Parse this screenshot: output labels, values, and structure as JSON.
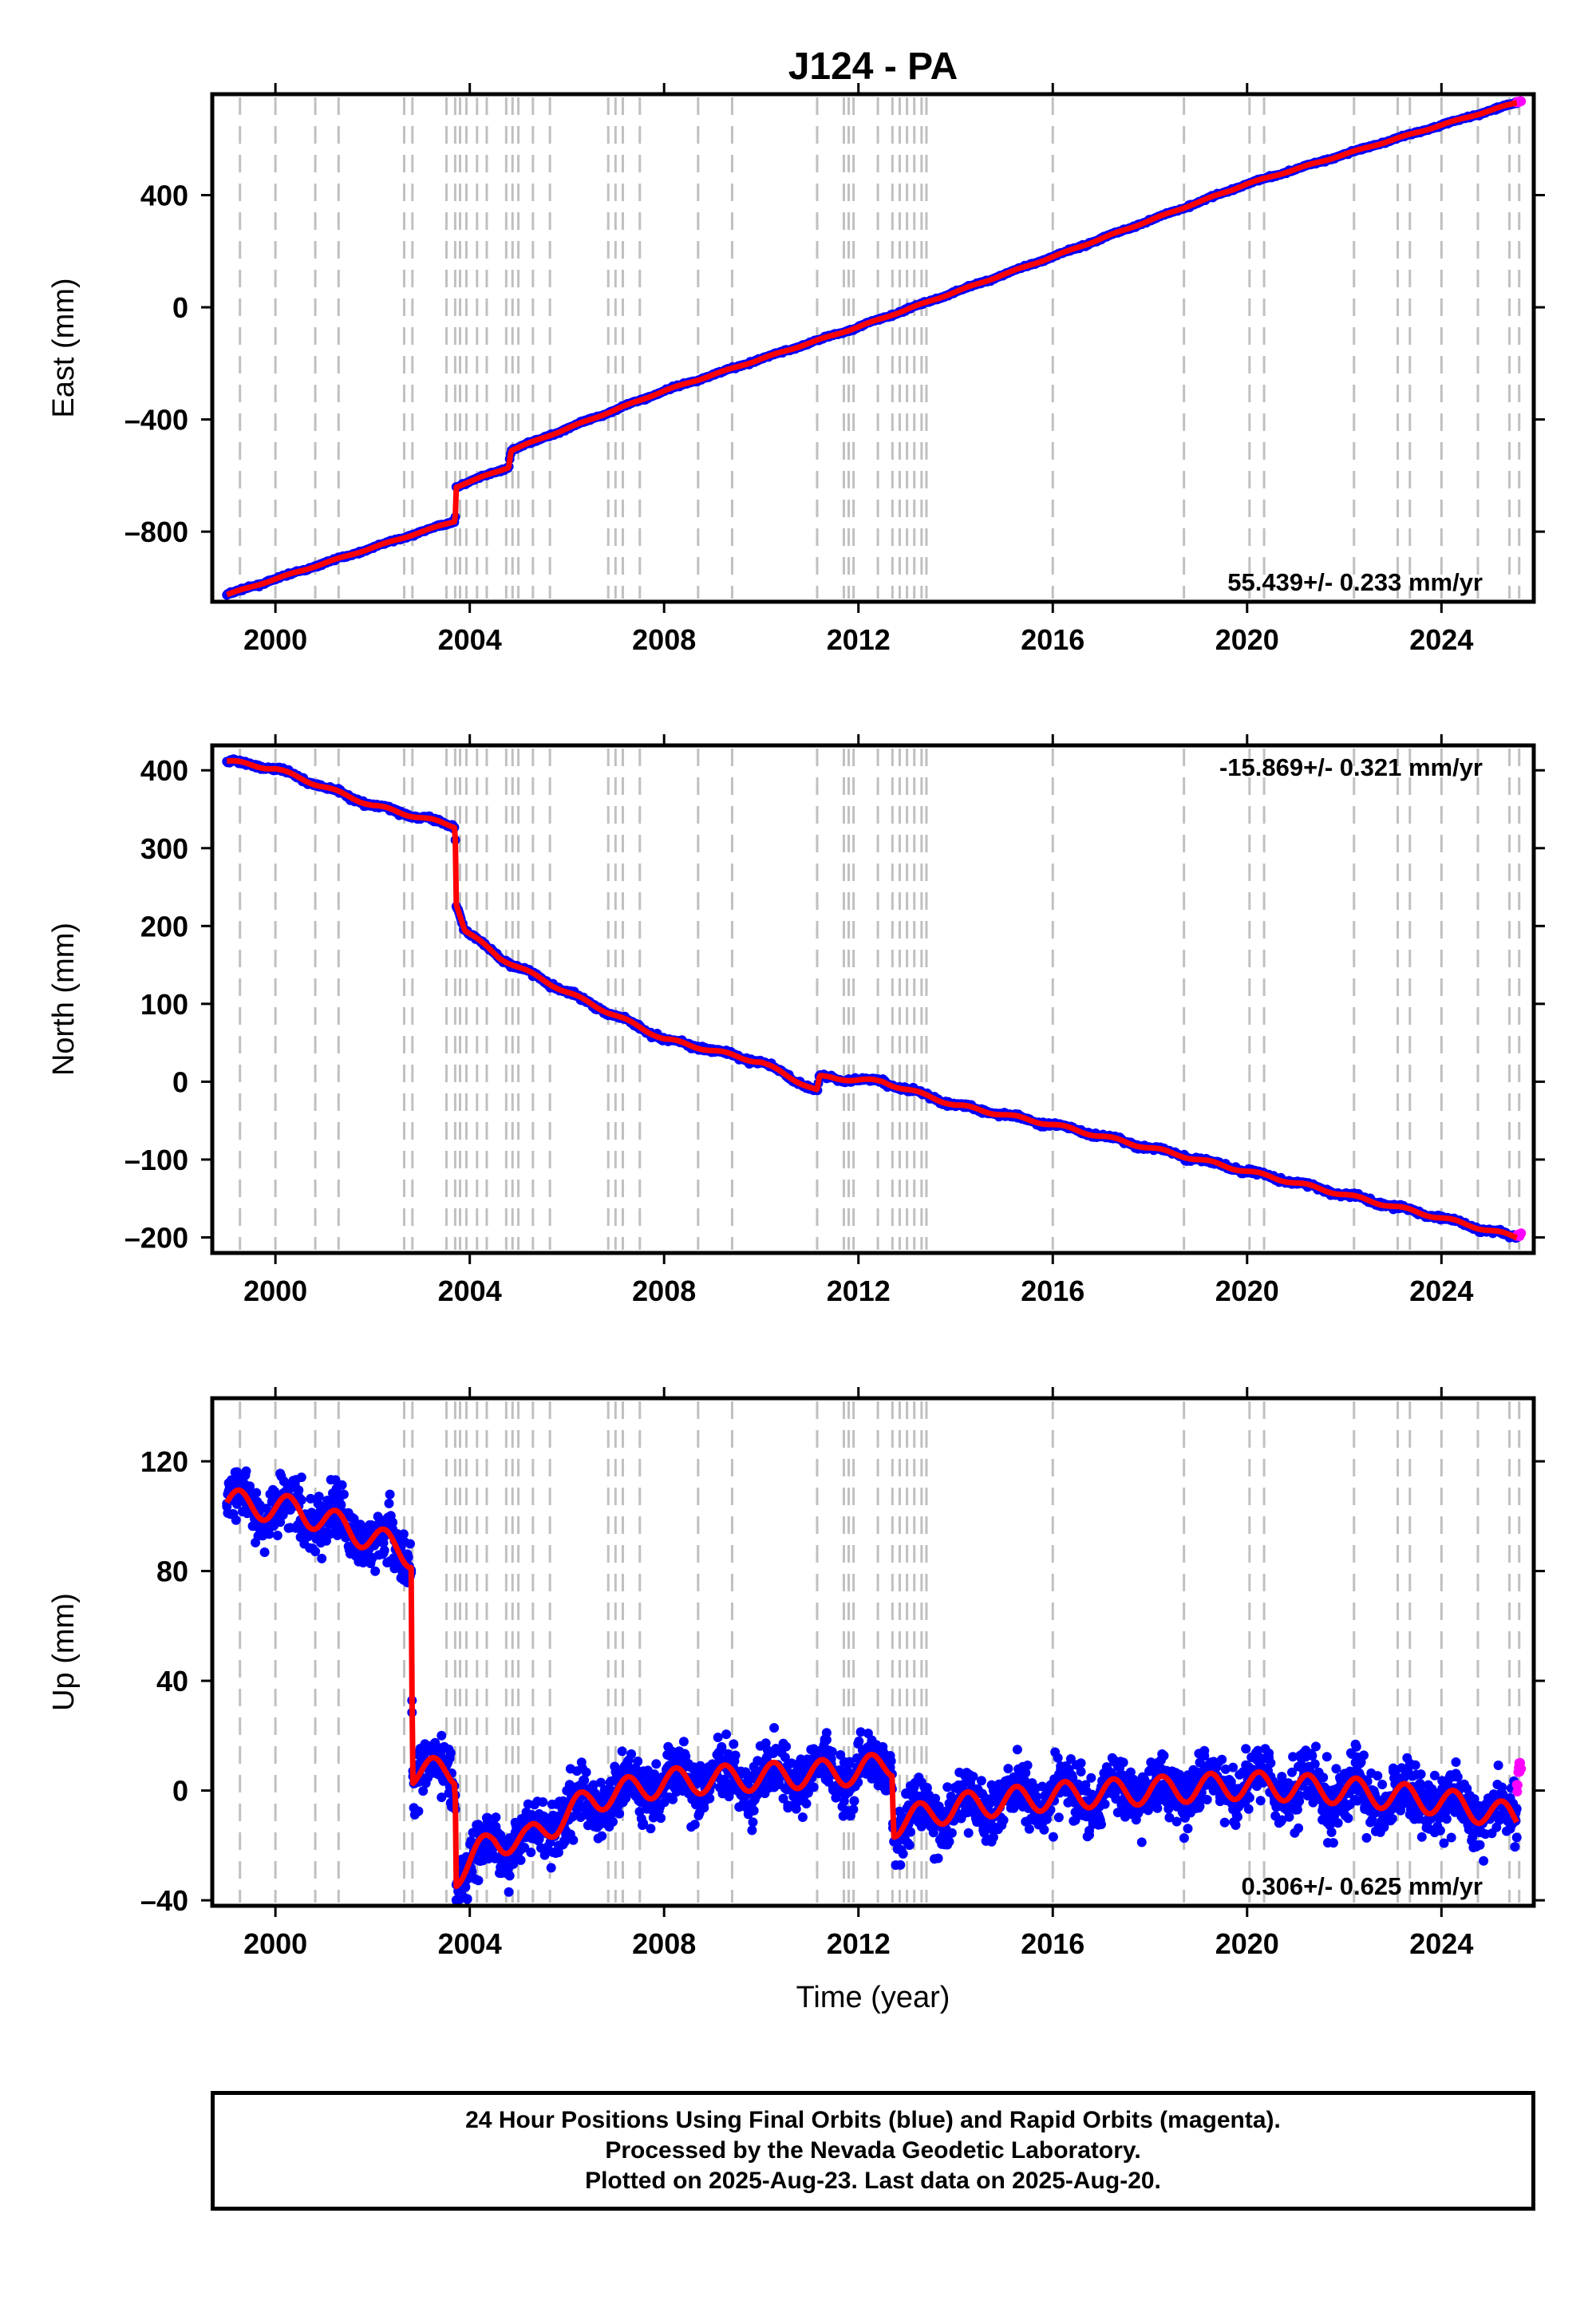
{
  "title": "J124 - PA",
  "xlabel": "Time (year)",
  "footer": {
    "line1": "24 Hour Positions Using Final Orbits (blue) and Rapid Orbits (magenta).",
    "line2": "Processed by the Nevada Geodetic Laboratory.",
    "line3": "Plotted on 2025-Aug-23. Last data on 2025-Aug-20."
  },
  "colors": {
    "final": "#0000ff",
    "rapid": "#ff00ff",
    "model": "#ff0000",
    "steps": "#c0c0c0",
    "axes": "#000000"
  },
  "chart_data": [
    {
      "type": "scatter",
      "component": "east",
      "ylabel": "East (mm)",
      "xlim": [
        1998.7,
        2025.9
      ],
      "ylim": [
        -1050,
        760
      ],
      "xticks": [
        2000,
        2004,
        2008,
        2012,
        2016,
        2020,
        2024
      ],
      "yticks": [
        -800,
        -400,
        0,
        400
      ],
      "rate_label": "55.439+/- 0.233 mm/yr",
      "rate_position": "bottom-right",
      "series": [
        {
          "kind": "final",
          "x": [
            1999.0,
            2003.7,
            2003.72,
            2004.8,
            2004.85,
            2008.0,
            2012.0,
            2016.0,
            2020.0,
            2024.0,
            2025.55
          ],
          "y": [
            -1025,
            -762,
            -640,
            -570,
            -510,
            -298,
            -70,
            180,
            440,
            650,
            730
          ]
        },
        {
          "kind": "rapid",
          "x": [
            2025.55,
            2025.64
          ],
          "y": [
            730,
            735
          ]
        }
      ]
    },
    {
      "type": "scatter",
      "component": "north",
      "ylabel": "North (mm)",
      "xlim": [
        1998.7,
        2025.9
      ],
      "ylim": [
        -220,
        432
      ],
      "xticks": [
        2000,
        2004,
        2008,
        2012,
        2016,
        2020,
        2024
      ],
      "yticks": [
        -200,
        -100,
        0,
        100,
        200,
        300,
        400
      ],
      "rate_label": "-15.869+/- 0.321 mm/yr",
      "rate_position": "top-right",
      "series": [
        {
          "kind": "final",
          "x": [
            1999.0,
            2000.0,
            2002.0,
            2003.7,
            2003.72,
            2003.9,
            2004.6,
            2006.0,
            2008.0,
            2010.0,
            2011.15,
            2011.2,
            2012.5,
            2014.0,
            2016.0,
            2018.0,
            2020.0,
            2022.0,
            2024.0,
            2025.55
          ],
          "y": [
            412,
            402,
            355,
            328,
            230,
            195,
            160,
            115,
            55,
            25,
            -12,
            6,
            0,
            -30,
            -55,
            -85,
            -115,
            -145,
            -175,
            -200
          ]
        },
        {
          "kind": "rapid",
          "x": [
            2025.55,
            2025.64
          ],
          "y": [
            -198,
            -196
          ]
        }
      ]
    },
    {
      "type": "scatter",
      "component": "up",
      "ylabel": "Up (mm)",
      "xlim": [
        1998.7,
        2025.9
      ],
      "ylim": [
        -42,
        143
      ],
      "xticks": [
        2000,
        2004,
        2008,
        2012,
        2016,
        2020,
        2024
      ],
      "yticks": [
        -40,
        0,
        40,
        80,
        120
      ],
      "rate_label": "0.306+/- 0.625 mm/yr",
      "rate_position": "bottom-right",
      "series": [
        {
          "kind": "final",
          "x": [
            1999.0,
            2000.5,
            2002.0,
            2002.8,
            2002.82,
            2003.7,
            2003.72,
            2004.5,
            2005.2,
            2006.5,
            2008.0,
            2010.0,
            2012.0,
            2012.7,
            2012.72,
            2014.0,
            2016.0,
            2018.0,
            2020.0,
            2022.0,
            2024.0,
            2025.55
          ],
          "y": [
            105,
            102,
            92,
            86,
            7,
            7,
            -30,
            -18,
            -18,
            -3,
            3,
            5,
            7,
            10,
            -12,
            -6,
            -2,
            0,
            2,
            0,
            -4,
            -10
          ]
        },
        {
          "kind": "rapid",
          "x": [
            2025.55,
            2025.64
          ],
          "y": [
            2,
            8
          ]
        }
      ]
    }
  ],
  "step_epochs": [
    1999.27,
    2000.0,
    2000.82,
    2001.3,
    2002.65,
    2002.82,
    2003.52,
    2003.7,
    2003.8,
    2003.93,
    2004.15,
    2004.35,
    2004.75,
    2004.88,
    2005.0,
    2005.3,
    2005.65,
    2006.85,
    2007.0,
    2007.15,
    2007.5,
    2008.7,
    2009.4,
    2011.15,
    2011.7,
    2011.8,
    2011.9,
    2012.4,
    2012.7,
    2012.85,
    2013.0,
    2013.15,
    2013.3,
    2013.4,
    2016.0,
    2018.7,
    2020.05,
    2020.35,
    2022.2,
    2023.1,
    2023.35,
    2024.0,
    2024.75,
    2025.4,
    2025.6
  ]
}
